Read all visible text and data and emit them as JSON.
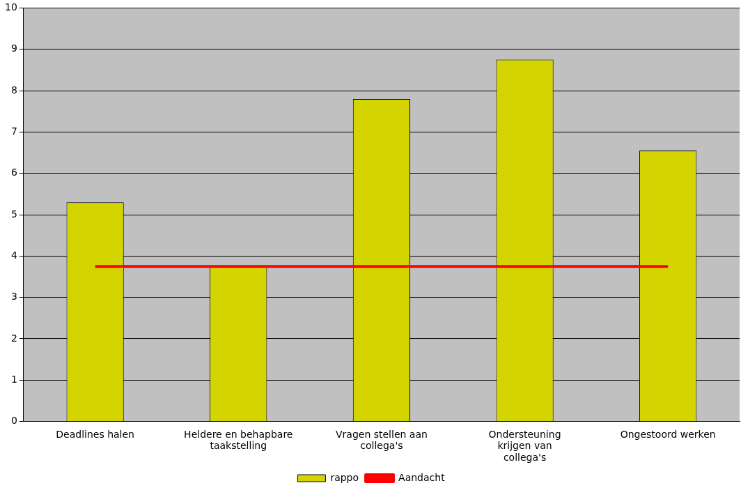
{
  "chart_data": {
    "type": "bar",
    "categories": [
      "Deadlines halen",
      "Heldere en behapbare taakstelling",
      "Vragen stellen aan collega's",
      "Ondersteuning krijgen van collega's",
      "Ongestoord werken"
    ],
    "series": [
      {
        "name": "rappo",
        "color": "#d4d400",
        "values": [
          5.3,
          3.75,
          7.8,
          8.75,
          6.55
        ]
      },
      {
        "name": "Aandacht",
        "type": "line",
        "color": "#ff0000",
        "values": [
          3.75,
          3.75,
          3.75,
          3.75,
          3.75
        ]
      }
    ],
    "ylim": [
      0,
      10
    ],
    "yticks": [
      0,
      1,
      2,
      3,
      4,
      5,
      6,
      7,
      8,
      9,
      10
    ],
    "grid": "y",
    "legend": "bottom",
    "marker": "none"
  }
}
